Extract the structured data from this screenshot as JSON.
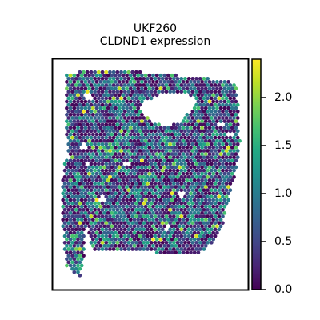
{
  "chart_data": {
    "type": "scatter",
    "title": "UKF260",
    "subtitle": "CLDND1 expression",
    "xlabel": "",
    "ylabel": "",
    "colorbar": {
      "colormap": "viridis",
      "range": [
        0.0,
        2.4
      ],
      "ticks": [
        {
          "value": 0.0,
          "label": "0.0"
        },
        {
          "value": 0.5,
          "label": "0.5"
        },
        {
          "value": 1.0,
          "label": "1.0"
        },
        {
          "value": 1.5,
          "label": "1.5"
        },
        {
          "value": 2.0,
          "label": "2.0"
        }
      ]
    },
    "grid": false,
    "legend": "colorbar-right"
  },
  "colors": {
    "viridis_low": "#440154",
    "viridis_mid": "#21918c",
    "viridis_high": "#fde725",
    "background": "#ffffff",
    "axes": "#000000"
  }
}
